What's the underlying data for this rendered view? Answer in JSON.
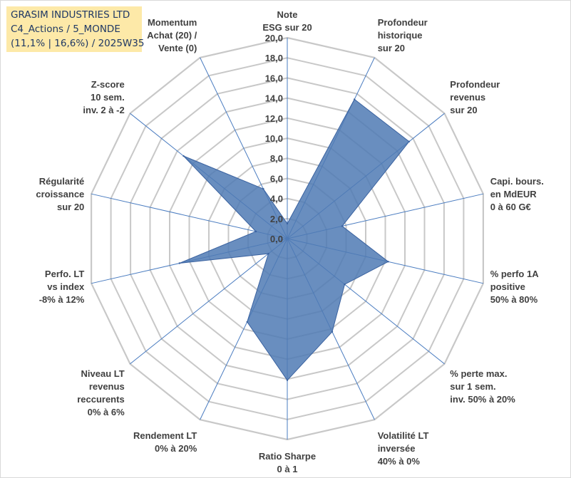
{
  "header": {
    "line1": "GRASIM INDUSTRIES LTD",
    "line2": "C4_Actions / 5_MONDE",
    "line3": "(11,1% | 16,6%) / 2025W35"
  },
  "chart_data": {
    "type": "radar",
    "rmin": 0,
    "rmax": 20,
    "tick_step": 2,
    "tick_labels": [
      "0,0",
      "2,0",
      "4,0",
      "6,0",
      "8,0",
      "10,0",
      "12,0",
      "14,0",
      "16,0",
      "18,0",
      "20,0"
    ],
    "grid": true,
    "legend": "none",
    "colors": {
      "fill": "#4f7ab4",
      "stroke": "#3a62a0",
      "grid": "#c8c8c8",
      "spoke": "#4a7cc0"
    },
    "axes": [
      {
        "label": [
          "Note",
          "ESG sur 20"
        ]
      },
      {
        "label": [
          "Profondeur",
          "historique",
          "sur 20"
        ]
      },
      {
        "label": [
          "Profondeur",
          "revenus",
          "sur 20"
        ]
      },
      {
        "label": [
          "Capi. bours.",
          "en MdEUR",
          "0 à 60 G€"
        ]
      },
      {
        "label": [
          "% perfo 1A",
          "positive",
          "50% à 80%"
        ]
      },
      {
        "label": [
          "% perte max.",
          "sur 1 sem.",
          "inv. 50% à 20%"
        ]
      },
      {
        "label": [
          "Volatilité LT",
          "inversée",
          "40% à 0%"
        ]
      },
      {
        "label": [
          "Ratio Sharpe",
          "0 à 1"
        ]
      },
      {
        "label": [
          "Rendement LT",
          "0% à 20%"
        ]
      },
      {
        "label": [
          "Niveau LT",
          "revenus",
          "reccurents",
          "0% à 6%"
        ]
      },
      {
        "label": [
          "Perfo. LT",
          "vs index",
          "-8% à 12%"
        ]
      },
      {
        "label": [
          "Régularité",
          "croissance",
          "sur 20"
        ]
      },
      {
        "label": [
          "Z-score",
          "10 sem.",
          "inv. 2 à -2"
        ]
      },
      {
        "label": [
          "Momentum",
          "Achat (20) /",
          "Vente (0)"
        ]
      }
    ],
    "series": [
      {
        "values": [
          1.5,
          15.4,
          15.5,
          5.6,
          10.3,
          7.3,
          10.3,
          14.1,
          9.2,
          2.4,
          11.0,
          3.2,
          13.2,
          5.5
        ]
      }
    ]
  }
}
